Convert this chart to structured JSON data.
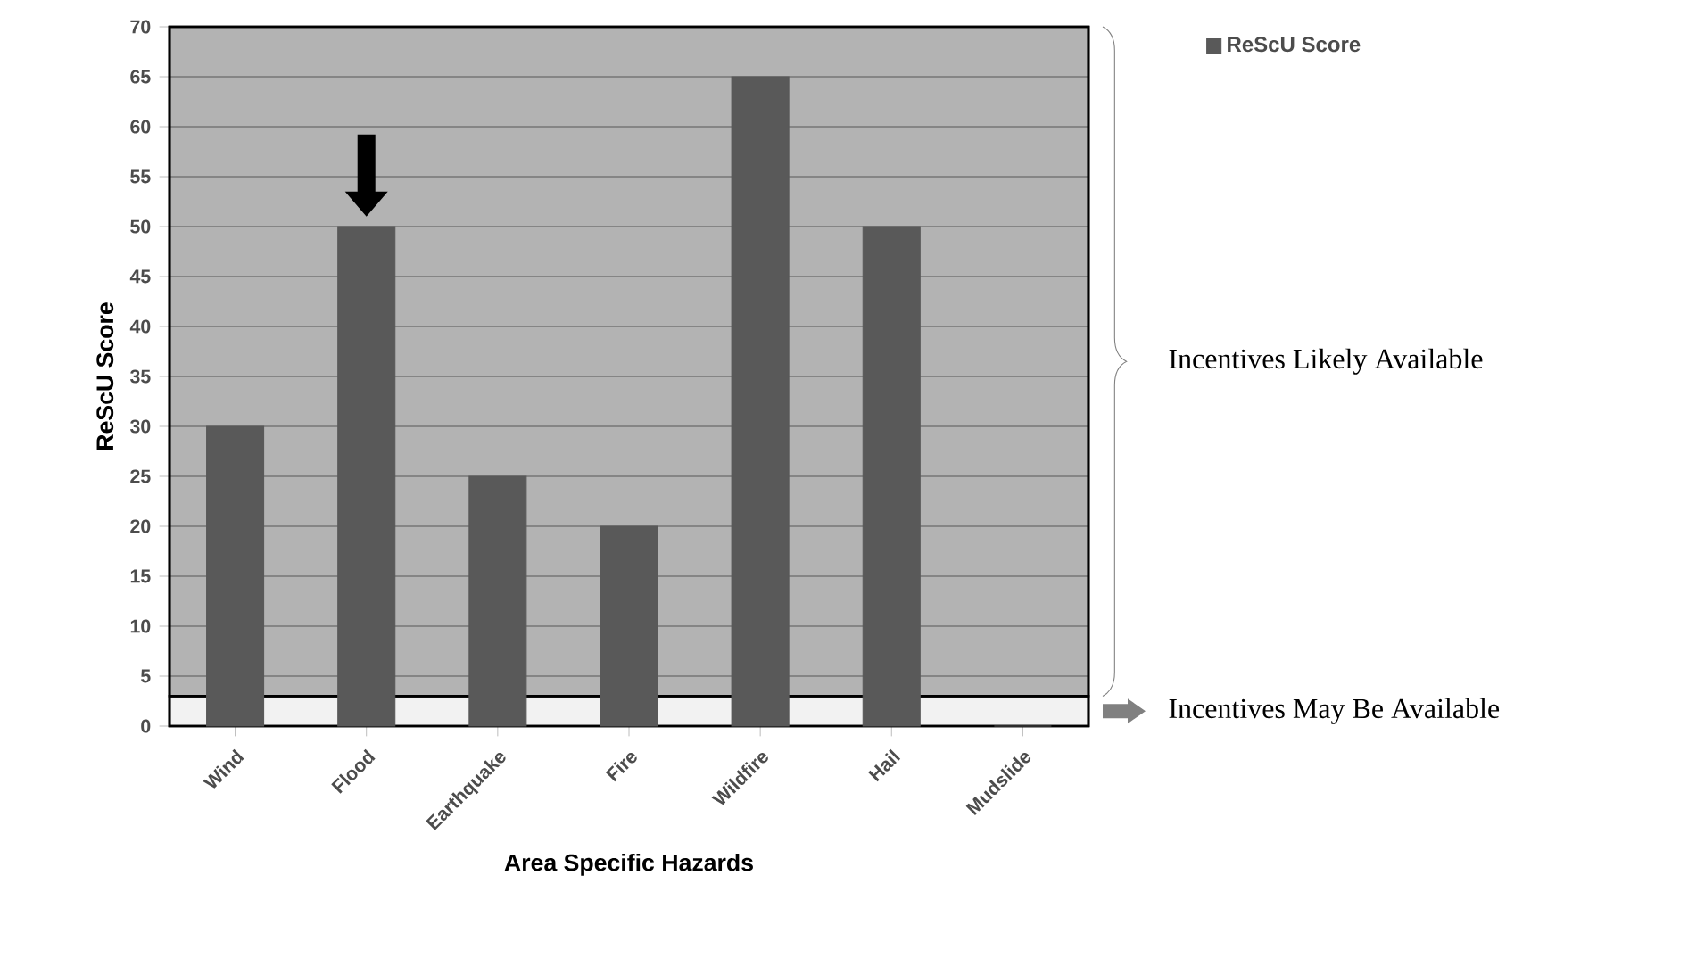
{
  "chart_data": {
    "type": "bar",
    "xlabel": "Area Specific Hazards",
    "ylabel": "ReScU Score",
    "categories": [
      "Wind",
      "Flood",
      "Earthquake",
      "Fire",
      "Wildfire",
      "Hail",
      "Mudslide"
    ],
    "series": [
      {
        "name": "ReScU Score",
        "color": "#595959",
        "values": [
          30,
          50,
          25,
          20,
          65,
          50,
          0
        ]
      }
    ],
    "ylim": [
      0,
      70
    ],
    "yticks": [
      0,
      5,
      10,
      15,
      20,
      25,
      30,
      35,
      40,
      45,
      50,
      55,
      60,
      65,
      70
    ],
    "grid": "y",
    "legend": "top right",
    "bands": [
      {
        "axis": "y",
        "from": 0,
        "to": 3,
        "label": "Incentives May Be Available",
        "color": "#f2f2f2"
      },
      {
        "axis": "y",
        "from": 3,
        "to": 70,
        "label": "Incentives Likely Available",
        "color": "#b3b3b3"
      }
    ]
  }
}
